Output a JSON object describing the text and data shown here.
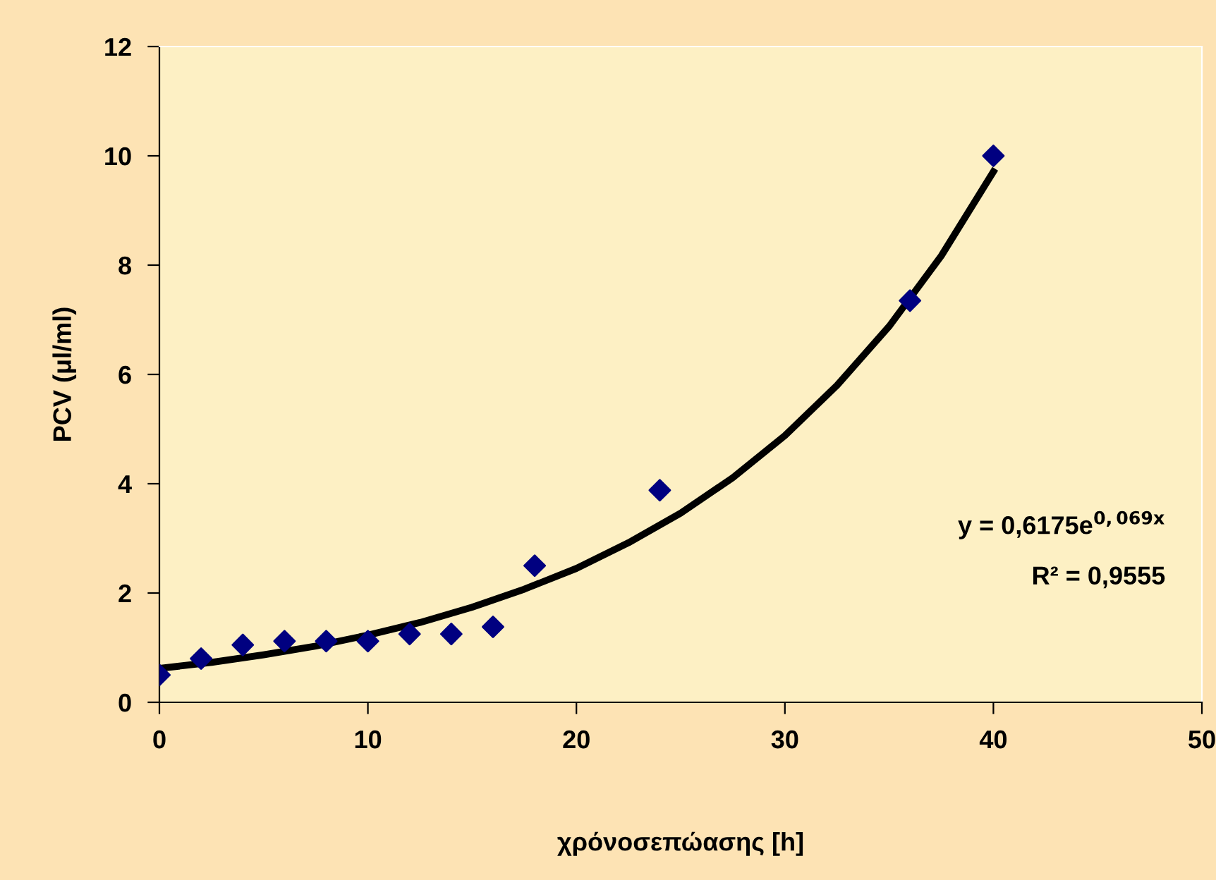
{
  "chart_data": {
    "type": "scatter",
    "xlabel": "χρόνοσεπώασης [h]",
    "ylabel": "PCV (μl/ml)",
    "xlim": [
      0,
      50
    ],
    "xticks": [
      0,
      10,
      20,
      30,
      40,
      50
    ],
    "ylim": [
      0,
      12
    ],
    "yticks": [
      0,
      2,
      4,
      6,
      8,
      10,
      12
    ],
    "grid": false,
    "legend": false,
    "marker": "diamond",
    "series": [
      {
        "color": "#000080",
        "x": [
          0,
          2,
          4,
          6,
          8,
          10,
          12,
          14,
          16,
          18,
          24,
          36,
          40
        ],
        "values": [
          0.5,
          0.8,
          1.05,
          1.12,
          1.12,
          1.12,
          1.25,
          1.25,
          1.38,
          2.5,
          3.88,
          7.35,
          10.0
        ]
      },
      {
        "type": "line",
        "color": "#000000",
        "marker": "none",
        "line_style": "solid",
        "x": [
          0,
          2.5,
          5,
          7.5,
          10,
          12.5,
          15,
          17.5,
          20,
          22.5,
          25,
          27.5,
          30,
          32.5,
          35,
          37.5,
          40
        ],
        "values": [
          0.62,
          0.73,
          0.87,
          1.03,
          1.23,
          1.46,
          1.74,
          2.07,
          2.45,
          2.92,
          3.46,
          4.11,
          4.88,
          5.8,
          6.88,
          8.17,
          9.71
        ]
      }
    ],
    "annotations": [
      "y = 0,6175e$^{0,069x}$",
      "R² = 0,9555"
    ]
  }
}
